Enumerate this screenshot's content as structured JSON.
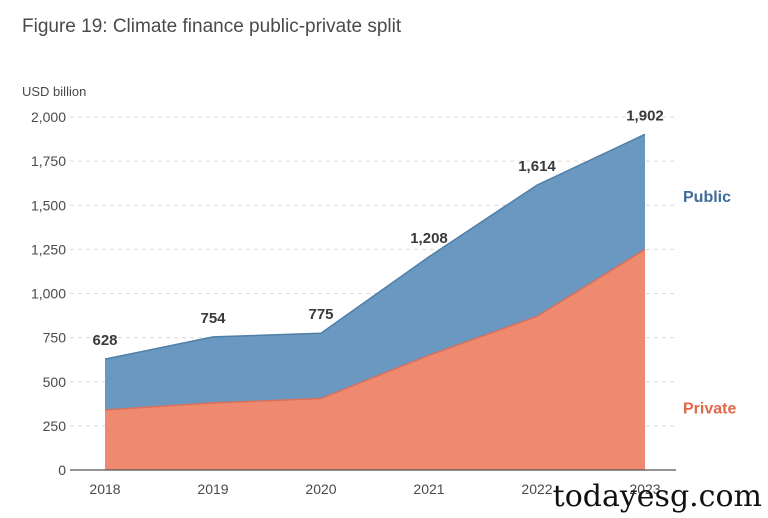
{
  "chart_data": {
    "type": "area",
    "title": "Figure 19: Climate finance public-private split",
    "ylabel": "USD billion",
    "x": [
      "2018",
      "2019",
      "2020",
      "2021",
      "2022",
      "2023"
    ],
    "ylim": [
      0,
      2000
    ],
    "yticks": [
      0,
      250,
      500,
      750,
      1000,
      1250,
      1500,
      1750,
      2000
    ],
    "ytick_labels": [
      "0",
      "250",
      "500",
      "750",
      "1,000",
      "1,250",
      "1,500",
      "1,750",
      "2,000"
    ],
    "stacked": true,
    "grid": true,
    "series": [
      {
        "name": "Private",
        "values": [
          340,
          380,
          405,
          650,
          870,
          1250
        ],
        "color": "#EE8A70"
      },
      {
        "name": "Public",
        "values": [
          288,
          374,
          370,
          558,
          744,
          652
        ],
        "color": "#6A98C0"
      }
    ],
    "totals": [
      628,
      754,
      775,
      1208,
      1614,
      1902
    ],
    "total_labels": [
      "628",
      "754",
      "775",
      "1,208",
      "1,614",
      "1,902"
    ],
    "legend_placement": "right"
  },
  "watermark": "todayesg.com",
  "colors": {
    "axis_text": "#4a4a4a",
    "grid": "#d9d9d9",
    "public_label": "#3E6D9B",
    "private_label": "#E0694A"
  }
}
